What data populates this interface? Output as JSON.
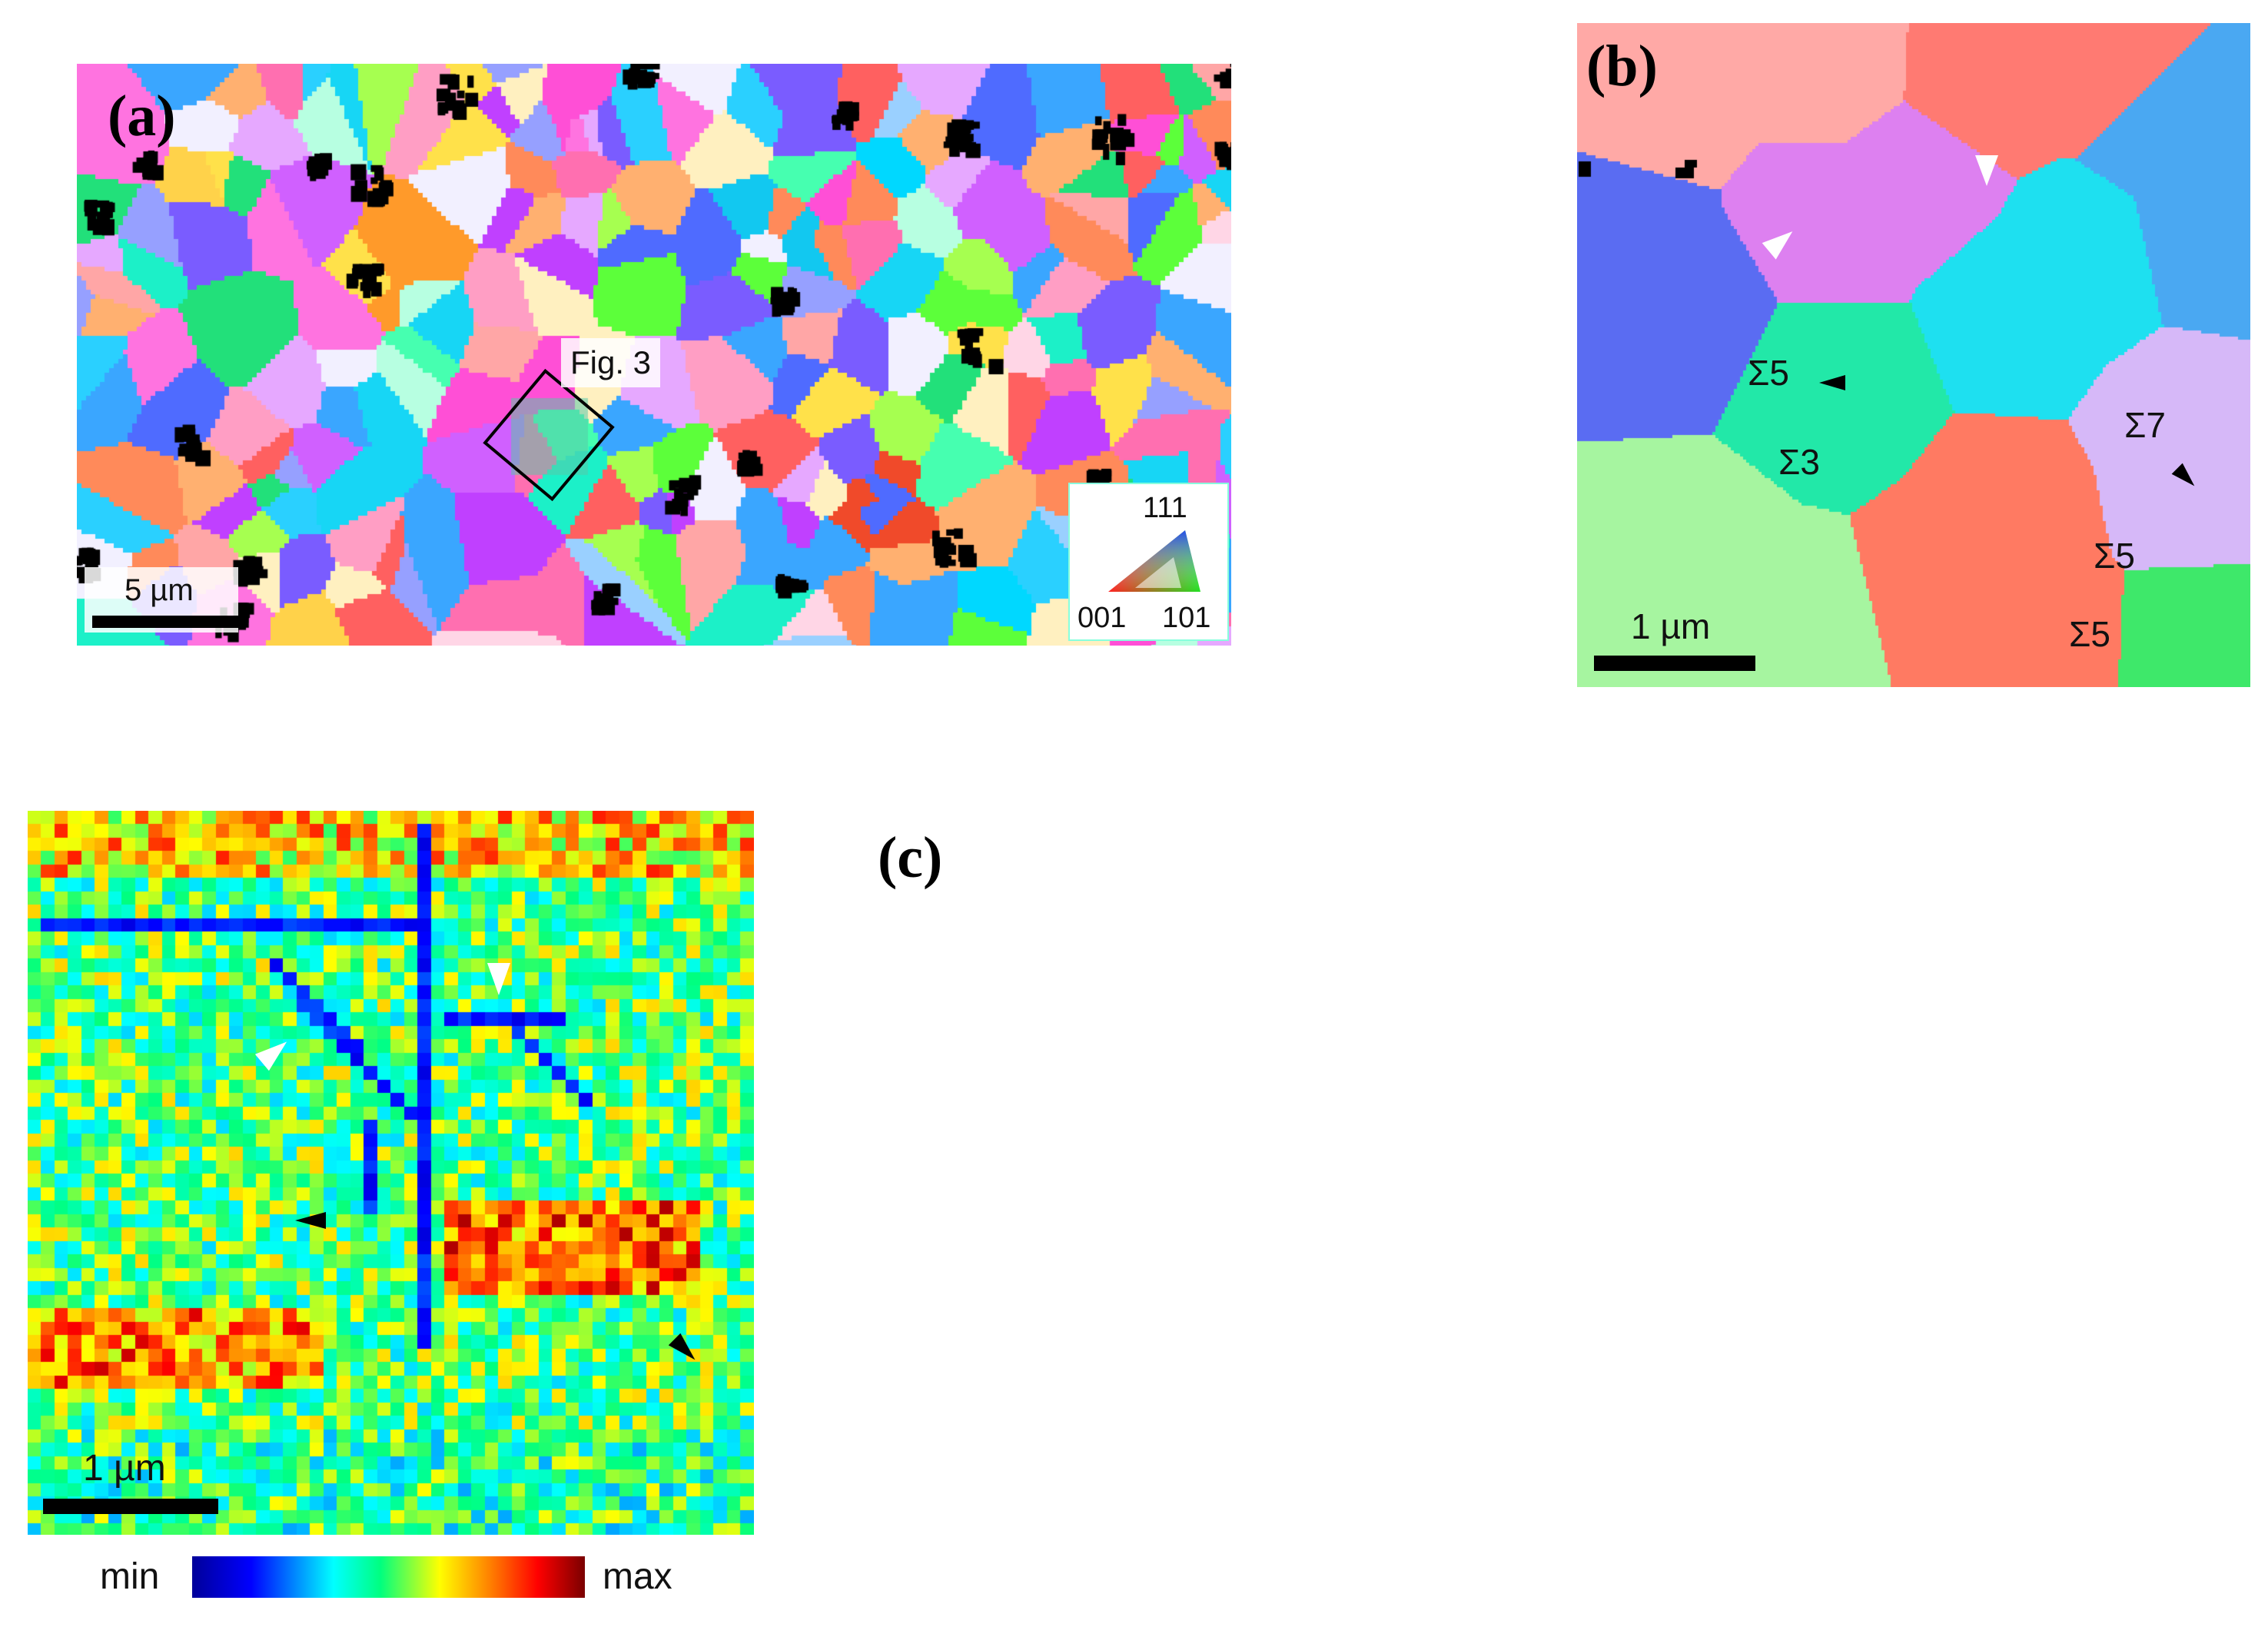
{
  "panels": {
    "a": {
      "label": "(a)",
      "box_label": "Fig. 3",
      "scale_bar": "5 µm",
      "ipf_legend": {
        "top": "111",
        "left": "001",
        "right": "101"
      }
    },
    "b": {
      "label": "(b)",
      "scale_bar": "1 µm",
      "boundary_labels": [
        "Σ5",
        "Σ3",
        "Σ7",
        "Σ5",
        "Σ5"
      ]
    },
    "c": {
      "label": "(c)",
      "scale_bar": "1 µm",
      "colorbar": {
        "min_label": "min",
        "max_label": "max"
      }
    }
  },
  "colors": {
    "orange_grain": "#ff9a2a",
    "red_grain": "#f04a2a",
    "cyan_grain": "#12c8f0"
  }
}
